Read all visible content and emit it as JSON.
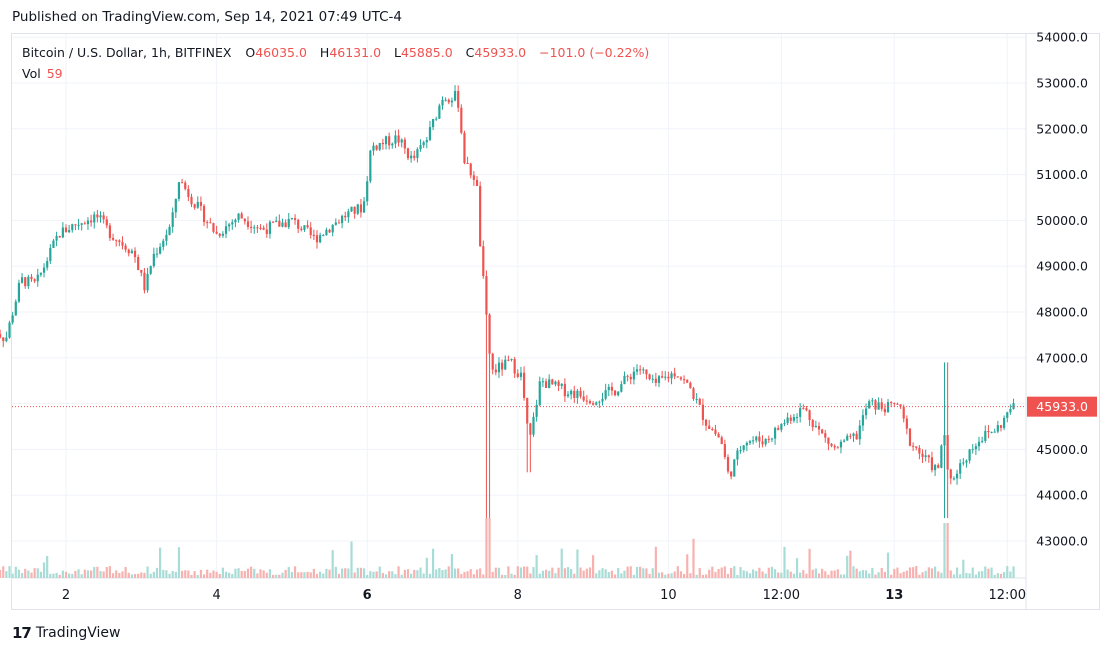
{
  "header": {
    "published": "Published on TradingView.com, Sep 14, 2021 07:49 UTC-4"
  },
  "legend": {
    "symbol": "Bitcoin / U.S. Dollar, 1h, BITFINEX",
    "o_label": "O",
    "o": "46035.0",
    "h_label": "H",
    "h": "46131.0",
    "l_label": "L",
    "l": "45885.0",
    "c_label": "C",
    "c": "45933.0",
    "change": "−101.0 (−0.22%)",
    "vol_label": "Vol",
    "vol": "59"
  },
  "footer": {
    "logo_mark": "17",
    "brand": "TradingView"
  },
  "colors": {
    "up": "#26a69a",
    "down": "#ef5350",
    "up_vol": "#a8dcd6",
    "down_vol": "#f7b2b0",
    "grid": "#f0f3fa",
    "price_line": "#ef5350"
  },
  "chart_data": {
    "type": "candlestick",
    "title": "Bitcoin / U.S. Dollar, 1h, BITFINEX",
    "y_axis": {
      "ticks": [
        "54000.0",
        "53000.0",
        "52000.0",
        "51000.0",
        "50000.0",
        "49000.0",
        "48000.0",
        "47000.0",
        "46000.0",
        "45000.0",
        "44000.0",
        "43000.0"
      ],
      "range": [
        42200,
        54100
      ]
    },
    "x_axis": {
      "ticks": [
        "2",
        "4",
        "6",
        "8",
        "10",
        "12:00",
        "13",
        "12:00"
      ],
      "bold_ticks": [
        "6",
        "13"
      ],
      "range_days": [
        1.25,
        14.5
      ]
    },
    "last_price": "45933.0",
    "price_path": [
      [
        1.0,
        47700
      ],
      [
        1.2,
        47400
      ],
      [
        1.4,
        48700
      ],
      [
        1.6,
        48600
      ],
      [
        1.9,
        49700
      ],
      [
        2.1,
        49900
      ],
      [
        2.4,
        50100
      ],
      [
        2.6,
        49700
      ],
      [
        2.9,
        49300
      ],
      [
        3.05,
        48500
      ],
      [
        3.15,
        49200
      ],
      [
        3.4,
        49900
      ],
      [
        3.5,
        50900
      ],
      [
        3.7,
        50400
      ],
      [
        4.0,
        49700
      ],
      [
        4.3,
        50100
      ],
      [
        4.6,
        49800
      ],
      [
        5.0,
        50000
      ],
      [
        5.3,
        49600
      ],
      [
        5.7,
        50100
      ],
      [
        5.95,
        50300
      ],
      [
        6.05,
        51600
      ],
      [
        6.4,
        51800
      ],
      [
        6.6,
        51300
      ],
      [
        6.8,
        51800
      ],
      [
        7.0,
        52700
      ],
      [
        7.2,
        52700
      ],
      [
        7.3,
        51200
      ],
      [
        7.45,
        50900
      ],
      [
        7.5,
        49500
      ],
      [
        7.6,
        47500
      ],
      [
        7.65,
        46700
      ],
      [
        7.9,
        46900
      ],
      [
        8.05,
        46600
      ],
      [
        8.15,
        45100
      ],
      [
        8.3,
        46500
      ],
      [
        8.6,
        46300
      ],
      [
        9.0,
        46100
      ],
      [
        9.3,
        46300
      ],
      [
        9.6,
        46800
      ],
      [
        9.8,
        46400
      ],
      [
        10.1,
        46700
      ],
      [
        10.3,
        46300
      ],
      [
        10.5,
        45600
      ],
      [
        10.7,
        45200
      ],
      [
        10.8,
        44400
      ],
      [
        11.0,
        45200
      ],
      [
        11.3,
        45200
      ],
      [
        11.6,
        45700
      ],
      [
        11.8,
        45900
      ],
      [
        12.0,
        45400
      ],
      [
        12.2,
        45000
      ],
      [
        12.5,
        45300
      ],
      [
        12.65,
        46000
      ],
      [
        12.9,
        45900
      ],
      [
        13.05,
        46000
      ],
      [
        13.2,
        45200
      ],
      [
        13.4,
        44800
      ],
      [
        13.6,
        44500
      ],
      [
        13.65,
        45700
      ],
      [
        13.72,
        44200
      ],
      [
        13.85,
        44600
      ],
      [
        14.1,
        45200
      ],
      [
        14.4,
        45500
      ],
      [
        14.55,
        45900
      ],
      [
        14.62,
        45950
      ]
    ]
  }
}
